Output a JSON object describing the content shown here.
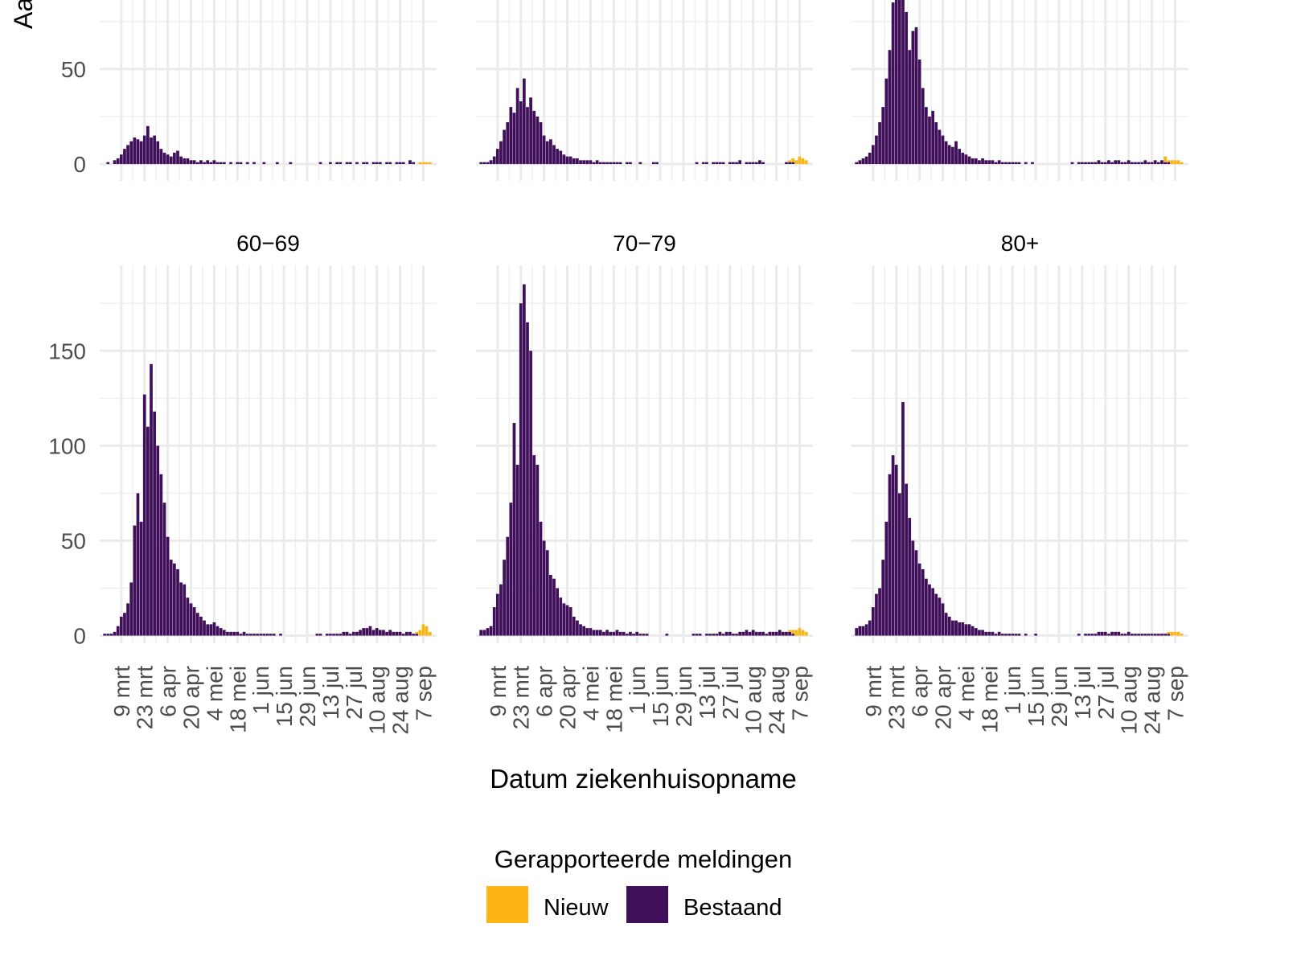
{
  "chart_data": {
    "type": "bar",
    "stacked": true,
    "grid": true,
    "legend": "bottom",
    "ylabel": "Aa",
    "xlabel": "Datum ziekenhuisopname",
    "legend_title": "Gerapporteerde meldingen",
    "series": [
      {
        "name": "Nieuw",
        "color": "#fdb515"
      },
      {
        "name": "Bestaand",
        "color": "#3f0f59"
      }
    ],
    "x": [
      59,
      61,
      63,
      65,
      67,
      69,
      71,
      73,
      75,
      77,
      79,
      81,
      83,
      85,
      87,
      89,
      91,
      93,
      95,
      97,
      99,
      101,
      103,
      105,
      107,
      109,
      111,
      113,
      115,
      117,
      119,
      121,
      123,
      125,
      127,
      129,
      131,
      133,
      135,
      137,
      139,
      141,
      143,
      145,
      147,
      149,
      151,
      153,
      155,
      157,
      159,
      161,
      163,
      165,
      167,
      169,
      171,
      173,
      175,
      177,
      179,
      181,
      183,
      185,
      187,
      189,
      191,
      193,
      195,
      197,
      199,
      201,
      203,
      205,
      207,
      209,
      211,
      213,
      215,
      217,
      219,
      221,
      223,
      225,
      227,
      229,
      231,
      233,
      235,
      237,
      239,
      241,
      243,
      245,
      247,
      249,
      251,
      253,
      255
    ],
    "xlim": [
      56,
      259
    ],
    "xticks": [
      {
        "value": 69,
        "label": "9 mrt"
      },
      {
        "value": 83,
        "label": "23 mrt"
      },
      {
        "value": 97,
        "label": "6 apr"
      },
      {
        "value": 111,
        "label": "20 apr"
      },
      {
        "value": 125,
        "label": "4 mei"
      },
      {
        "value": 139,
        "label": "18 mei"
      },
      {
        "value": 153,
        "label": "1 jun"
      },
      {
        "value": 167,
        "label": "15 jun"
      },
      {
        "value": 181,
        "label": "29 jun"
      },
      {
        "value": 195,
        "label": "13 jul"
      },
      {
        "value": 209,
        "label": "27 jul"
      },
      {
        "value": 223,
        "label": "10 aug"
      },
      {
        "value": 237,
        "label": "24 aug"
      },
      {
        "value": 251,
        "label": "7 sep"
      }
    ],
    "panels": [
      {
        "ylim": [
          -4,
          195
        ],
        "yticks": [
          0,
          50
        ],
        "series": [
          {
            "x": [
              249,
              251,
              253,
              255
            ],
            "values": [
              1,
              1,
              1,
              1
            ]
          },
          {
            "values": [
              0,
              1,
              0,
              2,
              3,
              5,
              8,
              10,
              12,
              14,
              13,
              12,
              15,
              20,
              14,
              15,
              12,
              8,
              6,
              5,
              4,
              6,
              7,
              4,
              3,
              3,
              2,
              2,
              1,
              2,
              1,
              2,
              1,
              2,
              1,
              1,
              1,
              0,
              1,
              0,
              1,
              1,
              0,
              1,
              0,
              1,
              0,
              0,
              1,
              0,
              0,
              0,
              1,
              0,
              0,
              0,
              1,
              0,
              0,
              0,
              0,
              0,
              0,
              0,
              0,
              1,
              0,
              0,
              1,
              0,
              1,
              1,
              0,
              1,
              1,
              0,
              1,
              0,
              1,
              1,
              0,
              1,
              1,
              1,
              0,
              1,
              1,
              0,
              1,
              1,
              1,
              0,
              2,
              1,
              0,
              0,
              0,
              0,
              0
            ]
          }
        ]
      },
      {
        "ylim": [
          -4,
          195
        ],
        "yticks": [
          0,
          50
        ],
        "series": [
          {
            "x": [
              245,
              247,
              249,
              251,
              253,
              255
            ],
            "values": [
              1,
              2,
              2,
              4,
              3,
              2
            ]
          },
          {
            "values": [
              1,
              1,
              1,
              2,
              4,
              8,
              12,
              18,
              22,
              30,
              27,
              40,
              33,
              45,
              30,
              35,
              28,
              25,
              22,
              15,
              12,
              13,
              10,
              8,
              7,
              5,
              4,
              4,
              3,
              3,
              2,
              2,
              2,
              2,
              1,
              2,
              1,
              1,
              1,
              1,
              1,
              1,
              1,
              0,
              1,
              1,
              0,
              0,
              1,
              0,
              0,
              0,
              1,
              1,
              0,
              0,
              0,
              0,
              0,
              0,
              0,
              0,
              0,
              0,
              0,
              1,
              0,
              1,
              1,
              0,
              1,
              1,
              1,
              1,
              0,
              1,
              1,
              1,
              2,
              0,
              1,
              1,
              1,
              1,
              2,
              1,
              0,
              0,
              0,
              0,
              0,
              0,
              1,
              1,
              1,
              0,
              0,
              0,
              0
            ]
          }
        ]
      },
      {
        "ylim": [
          -4,
          195
        ],
        "yticks": [
          0,
          50
        ],
        "series": [
          {
            "x": [
              245,
              247,
              249,
              251,
              253,
              255
            ],
            "values": [
              3,
              1,
              2,
              2,
              2,
              1
            ]
          },
          {
            "values": [
              1,
              2,
              3,
              4,
              6,
              10,
              15,
              22,
              30,
              45,
              60,
              85,
              100,
              95,
              105,
              80,
              60,
              70,
              72,
              55,
              40,
              30,
              25,
              28,
              22,
              18,
              15,
              12,
              10,
              9,
              12,
              8,
              6,
              5,
              4,
              3,
              3,
              2,
              3,
              2,
              2,
              2,
              1,
              2,
              1,
              1,
              1,
              1,
              1,
              1,
              0,
              1,
              0,
              1,
              0,
              0,
              0,
              0,
              0,
              0,
              0,
              0,
              0,
              0,
              0,
              1,
              0,
              1,
              1,
              1,
              1,
              1,
              1,
              2,
              1,
              1,
              2,
              1,
              2,
              2,
              1,
              1,
              2,
              1,
              1,
              1,
              1,
              2,
              1,
              1,
              2,
              1,
              2,
              1,
              1,
              0,
              0,
              0,
              0
            ]
          }
        ]
      },
      {
        "title": "60−69",
        "ylim": [
          -4,
          195
        ],
        "yticks": [
          0,
          50,
          100,
          150
        ],
        "series": [
          {
            "x": [
              247,
              249,
              251,
              253,
              255
            ],
            "values": [
              1,
              3,
              6,
              5,
              2
            ]
          },
          {
            "values": [
              1,
              1,
              1,
              2,
              5,
              10,
              12,
              17,
              28,
              58,
              75,
              60,
              127,
              110,
              143,
              118,
              100,
              85,
              70,
              52,
              40,
              38,
              35,
              28,
              27,
              20,
              17,
              15,
              12,
              10,
              8,
              6,
              6,
              7,
              5,
              4,
              3,
              2,
              2,
              2,
              2,
              1,
              2,
              1,
              1,
              1,
              1,
              1,
              1,
              1,
              1,
              1,
              0,
              1,
              0,
              0,
              0,
              0,
              0,
              0,
              0,
              0,
              0,
              0,
              1,
              1,
              0,
              1,
              1,
              1,
              1,
              1,
              2,
              2,
              1,
              2,
              2,
              3,
              4,
              4,
              5,
              3,
              4,
              3,
              3,
              2,
              3,
              2,
              2,
              2,
              1,
              2,
              2,
              1,
              1,
              0,
              0,
              0,
              0
            ]
          }
        ]
      },
      {
        "title": "70−79",
        "ylim": [
          -4,
          195
        ],
        "yticks": [
          0,
          50,
          100,
          150
        ],
        "series": [
          {
            "x": [
              245,
              247,
              249,
              251,
              253,
              255
            ],
            "values": [
              1,
              2,
              3,
              4,
              3,
              2
            ]
          },
          {
            "values": [
              3,
              3,
              4,
              5,
              15,
              22,
              27,
              40,
              52,
              70,
              112,
              90,
              175,
              185,
              165,
              150,
              95,
              90,
              60,
              50,
              45,
              32,
              30,
              25,
              20,
              17,
              16,
              15,
              10,
              8,
              6,
              5,
              4,
              4,
              3,
              3,
              3,
              2,
              3,
              2,
              2,
              3,
              2,
              2,
              1,
              2,
              1,
              2,
              1,
              1,
              1,
              0,
              0,
              0,
              0,
              0,
              1,
              0,
              0,
              0,
              0,
              0,
              0,
              0,
              1,
              1,
              1,
              0,
              1,
              1,
              1,
              1,
              2,
              1,
              2,
              2,
              1,
              1,
              2,
              2,
              3,
              2,
              3,
              2,
              2,
              2,
              1,
              2,
              2,
              2,
              3,
              2,
              2,
              2,
              1,
              0,
              0,
              0,
              0
            ]
          }
        ]
      },
      {
        "title": "80+",
        "ylim": [
          -4,
          195
        ],
        "yticks": [
          0,
          50,
          100,
          150
        ],
        "series": [
          {
            "x": [
              247,
              249,
              251,
              253,
              255
            ],
            "values": [
              1,
              2,
              2,
              2,
              1
            ]
          },
          {
            "values": [
              4,
              5,
              5,
              6,
              8,
              15,
              22,
              25,
              40,
              60,
              85,
              95,
              90,
              75,
              123,
              80,
              62,
              50,
              45,
              38,
              35,
              30,
              27,
              25,
              22,
              20,
              17,
              12,
              10,
              8,
              8,
              7,
              7,
              6,
              6,
              5,
              4,
              3,
              3,
              2,
              2,
              2,
              1,
              2,
              1,
              1,
              1,
              1,
              1,
              1,
              0,
              1,
              0,
              0,
              1,
              0,
              0,
              0,
              0,
              0,
              0,
              0,
              0,
              0,
              0,
              0,
              0,
              1,
              0,
              1,
              1,
              1,
              1,
              2,
              2,
              2,
              1,
              2,
              2,
              2,
              1,
              1,
              2,
              1,
              1,
              1,
              1,
              1,
              1,
              1,
              1,
              1,
              1,
              1,
              1,
              0,
              0,
              0,
              0
            ]
          }
        ]
      }
    ]
  }
}
